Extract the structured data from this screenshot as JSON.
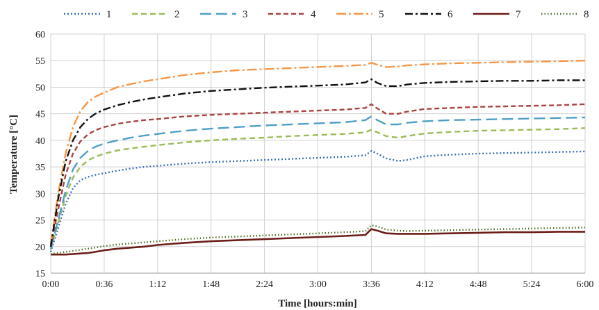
{
  "chart_data": {
    "type": "line",
    "xlabel": "Time [hours:min]",
    "ylabel": "Temperature [°C]",
    "x_ticks": [
      "0:00",
      "0:36",
      "1:12",
      "1:48",
      "2:24",
      "3:00",
      "3:36",
      "4:12",
      "4:48",
      "5:24",
      "6:00"
    ],
    "x_tick_minutes": [
      0,
      36,
      72,
      108,
      144,
      180,
      216,
      252,
      288,
      324,
      360
    ],
    "xlim": [
      0,
      360
    ],
    "ylim": [
      15,
      60
    ],
    "y_ticks": [
      15,
      20,
      25,
      30,
      35,
      40,
      45,
      50,
      55,
      60
    ],
    "grid": true,
    "legend_position": "top",
    "x": [
      0,
      5,
      10,
      15,
      20,
      25,
      30,
      36,
      45,
      54,
      63,
      72,
      90,
      108,
      126,
      144,
      162,
      180,
      198,
      212,
      216,
      220,
      226,
      234,
      240,
      252,
      270,
      288,
      306,
      324,
      342,
      360
    ],
    "series": [
      {
        "name": "1",
        "color": "#3b6fb6",
        "dash": "2,3",
        "width": 2.4,
        "values": [
          19.0,
          23.5,
          28.0,
          31.0,
          32.5,
          33.1,
          33.5,
          33.8,
          34.3,
          34.7,
          35.0,
          35.2,
          35.6,
          35.9,
          36.1,
          36.3,
          36.5,
          36.7,
          36.9,
          37.2,
          38.0,
          37.5,
          36.6,
          36.1,
          36.3,
          37.0,
          37.3,
          37.5,
          37.6,
          37.7,
          37.8,
          37.9
        ]
      },
      {
        "name": "2",
        "color": "#9bbb59",
        "dash": "8,5",
        "width": 2.4,
        "values": [
          19.5,
          24.5,
          29.5,
          33.0,
          35.0,
          36.2,
          36.9,
          37.5,
          38.1,
          38.5,
          38.8,
          39.1,
          39.6,
          40.0,
          40.3,
          40.5,
          40.8,
          41.0,
          41.2,
          41.5,
          42.0,
          41.5,
          40.8,
          40.5,
          40.8,
          41.3,
          41.6,
          41.8,
          41.9,
          42.0,
          42.1,
          42.3
        ]
      },
      {
        "name": "3",
        "color": "#4f9fc6",
        "dash": "16,7",
        "width": 2.4,
        "values": [
          19.5,
          25.0,
          30.5,
          34.5,
          36.7,
          38.0,
          38.8,
          39.4,
          40.0,
          40.5,
          40.9,
          41.2,
          41.8,
          42.2,
          42.5,
          42.8,
          43.0,
          43.2,
          43.4,
          43.8,
          44.5,
          43.8,
          43.0,
          43.0,
          43.3,
          43.6,
          43.8,
          43.9,
          44.0,
          44.1,
          44.2,
          44.3
        ]
      },
      {
        "name": "4",
        "color": "#a94442",
        "dash": "7,4",
        "width": 2.4,
        "values": [
          20.0,
          27.0,
          33.5,
          37.5,
          39.8,
          41.1,
          41.9,
          42.5,
          43.1,
          43.5,
          43.8,
          44.0,
          44.5,
          44.8,
          45.0,
          45.2,
          45.4,
          45.6,
          45.8,
          46.1,
          46.8,
          46.0,
          45.0,
          45.0,
          45.4,
          45.9,
          46.1,
          46.3,
          46.4,
          46.5,
          46.6,
          46.8
        ]
      },
      {
        "name": "5",
        "color": "#f79646",
        "dash": "14,4,3,4",
        "width": 2.4,
        "values": [
          20.5,
          30.0,
          37.5,
          42.5,
          45.5,
          47.2,
          48.2,
          49.0,
          50.0,
          50.6,
          51.1,
          51.5,
          52.3,
          52.8,
          53.2,
          53.4,
          53.6,
          53.8,
          54.0,
          54.2,
          54.6,
          54.2,
          53.8,
          53.9,
          54.1,
          54.3,
          54.5,
          54.6,
          54.7,
          54.8,
          54.9,
          55.0
        ]
      },
      {
        "name": "6",
        "color": "#111111",
        "dash": "11,4,3,4",
        "width": 2.4,
        "values": [
          20.0,
          29.0,
          36.0,
          40.0,
          42.5,
          44.0,
          45.0,
          45.8,
          46.6,
          47.2,
          47.7,
          48.1,
          48.8,
          49.3,
          49.6,
          49.9,
          50.1,
          50.3,
          50.5,
          50.9,
          51.5,
          50.8,
          50.2,
          50.2,
          50.5,
          50.8,
          51.0,
          51.1,
          51.2,
          51.2,
          51.3,
          51.3
        ]
      },
      {
        "name": "7",
        "color": "#6b1d17",
        "dash": "",
        "width": 2.6,
        "values": [
          18.5,
          18.5,
          18.5,
          18.6,
          18.7,
          18.8,
          19.0,
          19.3,
          19.6,
          19.8,
          20.0,
          20.3,
          20.7,
          21.0,
          21.2,
          21.4,
          21.6,
          21.8,
          22.0,
          22.2,
          23.3,
          23.0,
          22.5,
          22.4,
          22.4,
          22.4,
          22.5,
          22.6,
          22.7,
          22.7,
          22.8,
          22.8
        ]
      },
      {
        "name": "8",
        "color": "#4a6b1c",
        "dash": "1.5,3",
        "width": 2.4,
        "values": [
          18.6,
          18.8,
          19.0,
          19.2,
          19.4,
          19.6,
          19.8,
          20.1,
          20.4,
          20.6,
          20.8,
          21.0,
          21.4,
          21.7,
          21.9,
          22.1,
          22.3,
          22.5,
          22.7,
          22.9,
          24.0,
          23.8,
          23.2,
          23.0,
          22.9,
          23.0,
          23.1,
          23.2,
          23.3,
          23.4,
          23.5,
          23.6
        ]
      }
    ]
  }
}
